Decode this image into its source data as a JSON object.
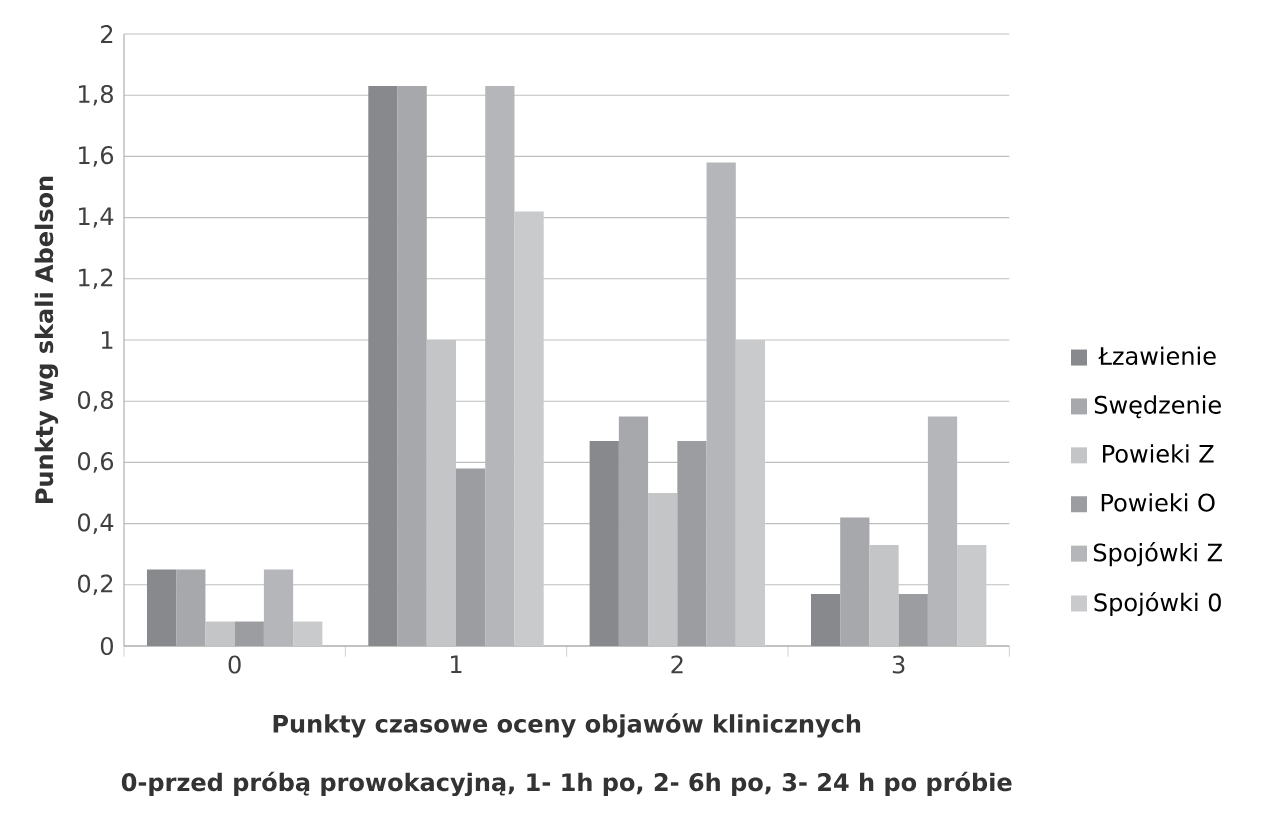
{
  "chart_data": {
    "type": "bar",
    "ylabel": "Punkty wg skali Abelson",
    "xlabel": "Punkty czasowe oceny objawów klinicznych",
    "annotations": [
      "0-przed próbą prowokacyjną, 1- 1h po, 2- 6h po, 3- 24 h po próbie"
    ],
    "categories": [
      "0",
      "1",
      "2",
      "3"
    ],
    "series": [
      {
        "name": "Łzawienie",
        "color": "#88898c",
        "values": [
          0.25,
          1.83,
          0.67,
          0.17
        ]
      },
      {
        "name": "Swędzenie",
        "color": "#a7a8ab",
        "values": [
          0.25,
          1.83,
          0.75,
          0.42
        ]
      },
      {
        "name": "Powieki Z",
        "color": "#c4c5c7",
        "values": [
          0.08,
          1.0,
          0.5,
          0.33
        ]
      },
      {
        "name": "Powieki O",
        "color": "#9c9da0",
        "values": [
          0.08,
          0.58,
          0.67,
          0.17
        ]
      },
      {
        "name": "Spojówki Z",
        "color": "#b5b6b9",
        "values": [
          0.25,
          1.83,
          1.58,
          0.75
        ]
      },
      {
        "name": "Spojówki 0",
        "color": "#c9cacc",
        "values": [
          0.08,
          1.42,
          1.0,
          0.33
        ]
      }
    ],
    "ylim": [
      0,
      2
    ],
    "yticks": [
      0,
      {
        "value": 0.2,
        "label": "0,2"
      },
      {
        "value": 0.4,
        "label": "0,4"
      },
      {
        "value": 0.6,
        "label": "0,6"
      },
      {
        "value": 0.8,
        "label": "0,8"
      },
      1,
      {
        "value": 1.2,
        "label": "1,2"
      },
      {
        "value": 1.4,
        "label": "1,4"
      },
      {
        "value": 1.6,
        "label": "1,6"
      },
      {
        "value": 1.8,
        "label": "1,8"
      },
      2
    ],
    "grid": "y",
    "legend": "right"
  }
}
